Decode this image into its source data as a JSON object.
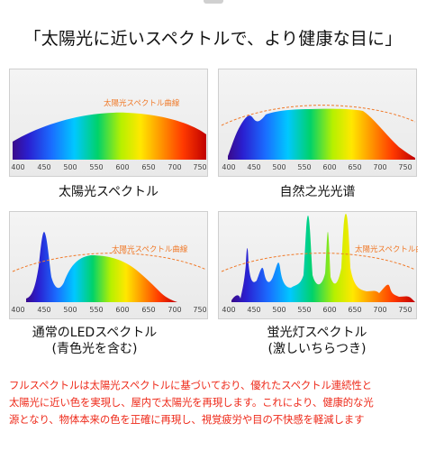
{
  "headline": "「太陽光に近いスペクトルで、より健康な目に」",
  "curve_label": "太陽光スペクトル曲線",
  "axis_ticks": [
    "400",
    "450",
    "500",
    "550",
    "600",
    "650",
    "700",
    "750"
  ],
  "panels": [
    {
      "caption_lines": [
        "太陽光スペクトル"
      ],
      "show_curve_label": true
    },
    {
      "caption_lines": [
        "自然之光光谱"
      ],
      "show_curve_label": false
    },
    {
      "caption_lines": [
        "通常のLEDスペクトル",
        "(青色光を含む)"
      ],
      "show_curve_label": true
    },
    {
      "caption_lines": [
        "蛍光灯スペクトル",
        "(激しいちらつき)"
      ],
      "show_curve_label": true
    }
  ],
  "description": [
    "フルスペクトルは太陽光スペクトルに基づいており、優れたスペクトル連続性と",
    "太陽光に近い色を実現し、屋内で太陽光を再現します。これにより、健康的な光",
    "源となり、物体本来の色を正確に再現し、視覚疲労や目の不快感を軽減します"
  ],
  "colors": {
    "accent_text": "#ee2a1a",
    "curve": "#f07a2a"
  }
}
